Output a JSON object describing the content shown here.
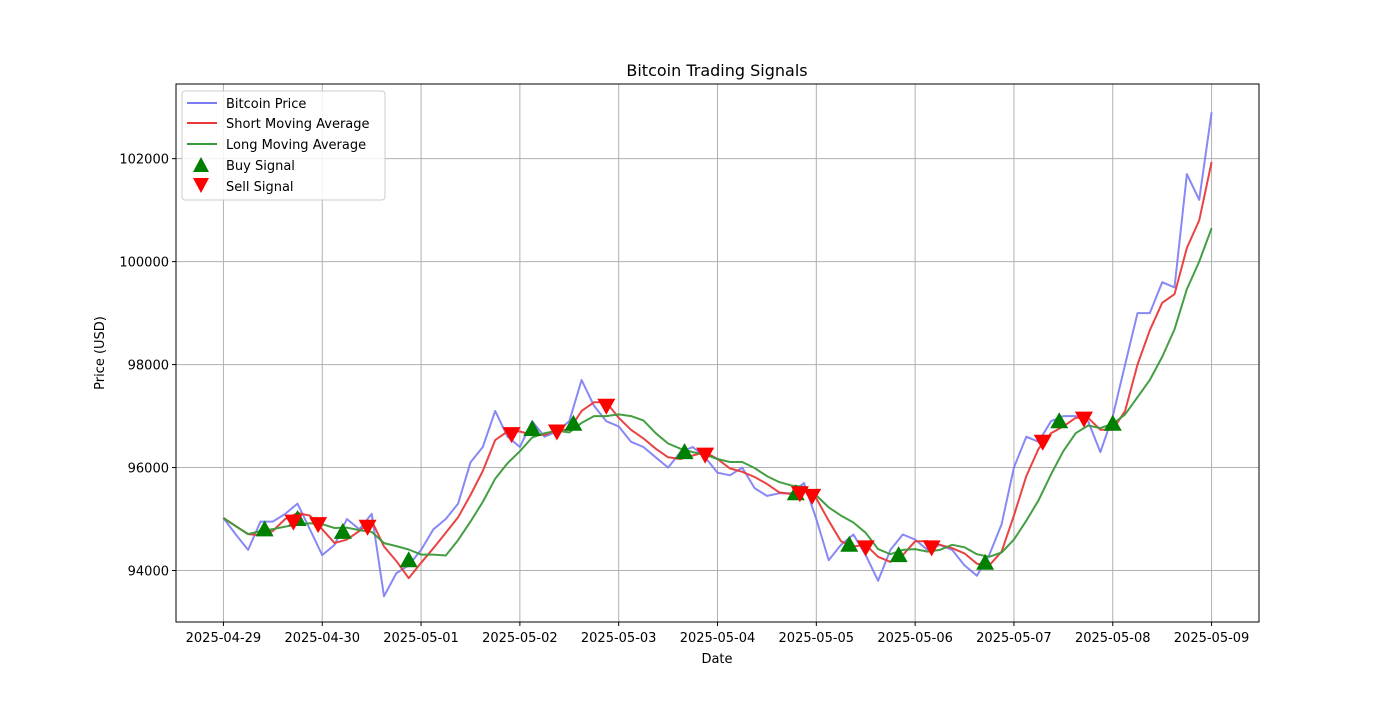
{
  "chart_data": {
    "type": "line",
    "title": "Bitcoin Trading Signals",
    "xlabel": "Date",
    "ylabel": "Price (USD)",
    "x_start": "2025-04-29 00:00",
    "interval_hours": 3,
    "xticks": [
      "2025-04-29",
      "2025-04-30",
      "2025-05-01",
      "2025-05-02",
      "2025-05-03",
      "2025-05-04",
      "2025-05-05",
      "2025-05-06",
      "2025-05-07",
      "2025-05-08",
      "2025-05-09"
    ],
    "yticks": [
      94000,
      96000,
      98000,
      100000,
      102000
    ],
    "ylim": [
      93000,
      103450
    ],
    "xlim_days": [
      -0.48,
      10.48
    ],
    "grid": true,
    "legend_position": "upper-left",
    "short_window": 3,
    "long_window": 6,
    "series": [
      {
        "name": "Bitcoin Price",
        "color": "#7b7bf5",
        "values": [
          95020,
          94700,
          94400,
          94950,
          94950,
          95100,
          95300,
          94800,
          94300,
          94500,
          95000,
          94800,
          95100,
          93500,
          93950,
          94100,
          94400,
          94800,
          95000,
          95300,
          96100,
          96400,
          97100,
          96600,
          96400,
          96900,
          96600,
          96700,
          96900,
          97700,
          97200,
          96900,
          96800,
          96500,
          96400,
          96200,
          96000,
          96300,
          96400,
          96200,
          95900,
          95850,
          96000,
          95600,
          95450,
          95500,
          95500,
          95700,
          95000,
          94200,
          94500,
          94700,
          94300,
          93800,
          94400,
          94700,
          94600,
          94400,
          94500,
          94400,
          94100,
          93900,
          94300,
          94900,
          96000,
          96600,
          96500,
          96900,
          97000,
          97000,
          96900,
          96300,
          97000,
          98000,
          99000,
          99000,
          99600,
          99500,
          101700,
          101200,
          102900
        ]
      },
      {
        "name": "Short Moving Average",
        "color": "#e8393a"
      },
      {
        "name": "Long Moving Average",
        "color": "#3a9a3a"
      }
    ],
    "buy_signals": [
      {
        "time": "2025-04-29 10:00",
        "price": 94800
      },
      {
        "time": "2025-04-29 18:00",
        "price": 95000
      },
      {
        "time": "2025-04-30 05:00",
        "price": 94750
      },
      {
        "time": "2025-04-30 21:00",
        "price": 94200
      },
      {
        "time": "2025-05-02 03:00",
        "price": 96750
      },
      {
        "time": "2025-05-02 13:00",
        "price": 96850
      },
      {
        "time": "2025-05-03 16:00",
        "price": 96300
      },
      {
        "time": "2025-05-04 19:00",
        "price": 95500
      },
      {
        "time": "2025-05-05 08:00",
        "price": 94500
      },
      {
        "time": "2025-05-05 20:00",
        "price": 94300
      },
      {
        "time": "2025-05-06 17:00",
        "price": 94150
      },
      {
        "time": "2025-05-07 11:00",
        "price": 96900
      },
      {
        "time": "2025-05-08 00:00",
        "price": 96850
      }
    ],
    "sell_signals": [
      {
        "time": "2025-04-29 17:00",
        "price": 94950
      },
      {
        "time": "2025-04-29 23:00",
        "price": 94900
      },
      {
        "time": "2025-04-30 11:00",
        "price": 94850
      },
      {
        "time": "2025-05-01 22:00",
        "price": 96650
      },
      {
        "time": "2025-05-02 09:00",
        "price": 96700
      },
      {
        "time": "2025-05-02 21:00",
        "price": 97200
      },
      {
        "time": "2025-05-03 21:00",
        "price": 96250
      },
      {
        "time": "2025-05-04 20:00",
        "price": 95500
      },
      {
        "time": "2025-05-04 23:00",
        "price": 95450
      },
      {
        "time": "2025-05-05 12:00",
        "price": 94450
      },
      {
        "time": "2025-05-06 04:00",
        "price": 94450
      },
      {
        "time": "2025-05-07 07:00",
        "price": 96500
      },
      {
        "time": "2025-05-07 17:00",
        "price": 96950
      }
    ],
    "legend": [
      "Bitcoin Price",
      "Short Moving Average",
      "Long Moving Average",
      "Buy Signal",
      "Sell Signal"
    ],
    "buy_color": "#008000",
    "sell_color": "#ff0000"
  }
}
